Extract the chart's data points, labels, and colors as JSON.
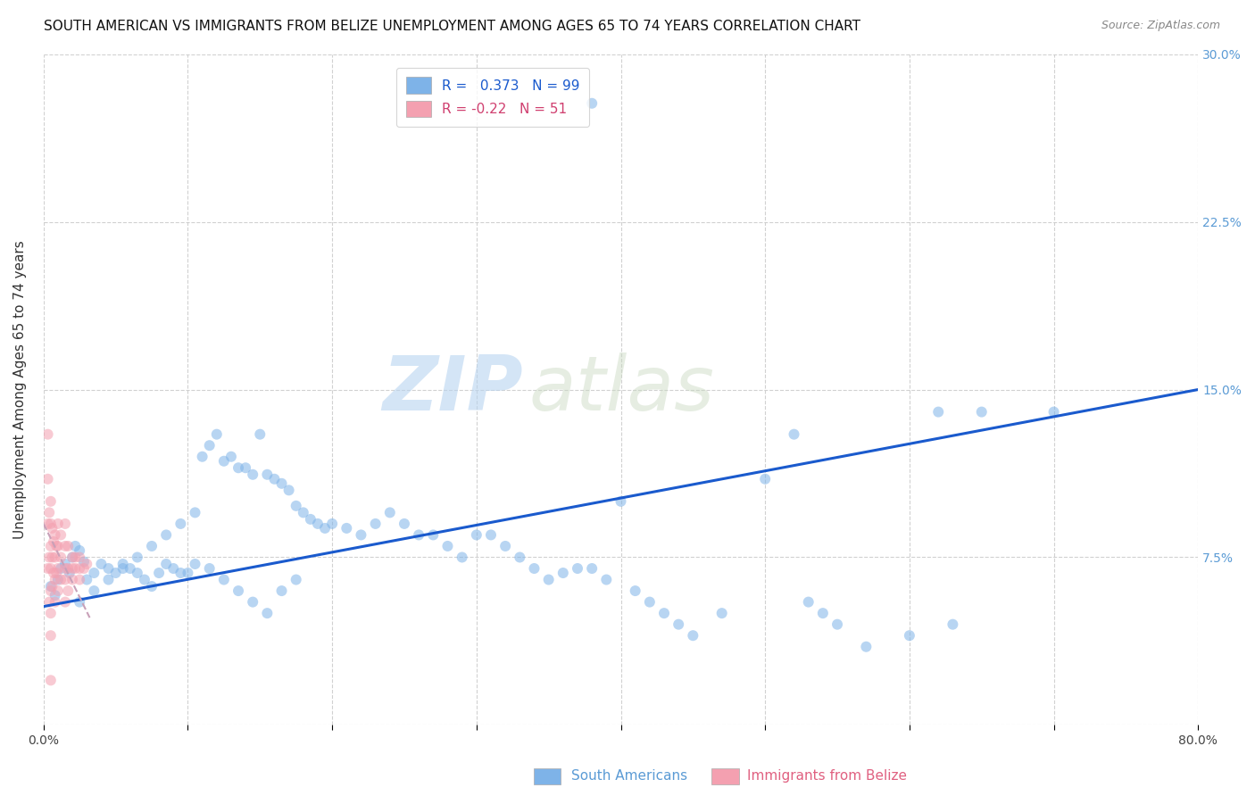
{
  "title": "SOUTH AMERICAN VS IMMIGRANTS FROM BELIZE UNEMPLOYMENT AMONG AGES 65 TO 74 YEARS CORRELATION CHART",
  "source": "Source: ZipAtlas.com",
  "ylabel": "Unemployment Among Ages 65 to 74 years",
  "xlim": [
    0,
    0.8
  ],
  "ylim": [
    0,
    0.3
  ],
  "xtick_positions": [
    0.0,
    0.1,
    0.2,
    0.3,
    0.4,
    0.5,
    0.6,
    0.7,
    0.8
  ],
  "xtick_labels": [
    "0.0%",
    "",
    "",
    "",
    "",
    "",
    "",
    "",
    "80.0%"
  ],
  "ytick_positions": [
    0.0,
    0.075,
    0.15,
    0.225,
    0.3
  ],
  "ytick_labels": [
    "",
    "7.5%",
    "15.0%",
    "22.5%",
    "30.0%"
  ],
  "blue_R": 0.373,
  "blue_N": 99,
  "pink_R": -0.22,
  "pink_N": 51,
  "blue_color": "#7eb3e8",
  "pink_color": "#f4a0b0",
  "trend_blue_color": "#1a5acd",
  "trend_pink_color": "#c8a0b8",
  "legend_label_blue": "South Americans",
  "legend_label_pink": "Immigrants from Belize",
  "watermark_zip": "ZIP",
  "watermark_atlas": "atlas",
  "blue_x": [
    0.005,
    0.008,
    0.01,
    0.012,
    0.015,
    0.018,
    0.02,
    0.022,
    0.025,
    0.028,
    0.03,
    0.035,
    0.04,
    0.045,
    0.05,
    0.055,
    0.06,
    0.065,
    0.07,
    0.075,
    0.08,
    0.085,
    0.09,
    0.095,
    0.1,
    0.105,
    0.11,
    0.115,
    0.12,
    0.125,
    0.13,
    0.135,
    0.14,
    0.145,
    0.15,
    0.155,
    0.16,
    0.165,
    0.17,
    0.175,
    0.18,
    0.185,
    0.19,
    0.195,
    0.2,
    0.21,
    0.22,
    0.23,
    0.24,
    0.25,
    0.26,
    0.27,
    0.28,
    0.29,
    0.3,
    0.31,
    0.32,
    0.33,
    0.34,
    0.35,
    0.36,
    0.37,
    0.38,
    0.39,
    0.4,
    0.41,
    0.42,
    0.43,
    0.44,
    0.45,
    0.47,
    0.5,
    0.52,
    0.53,
    0.54,
    0.55,
    0.57,
    0.6,
    0.62,
    0.63,
    0.65,
    0.7,
    0.025,
    0.035,
    0.045,
    0.055,
    0.065,
    0.075,
    0.085,
    0.095,
    0.105,
    0.115,
    0.125,
    0.135,
    0.145,
    0.155,
    0.165,
    0.175,
    0.38
  ],
  "blue_y": [
    0.062,
    0.058,
    0.065,
    0.07,
    0.072,
    0.068,
    0.075,
    0.08,
    0.078,
    0.073,
    0.065,
    0.068,
    0.072,
    0.07,
    0.068,
    0.072,
    0.07,
    0.068,
    0.065,
    0.062,
    0.068,
    0.072,
    0.07,
    0.068,
    0.068,
    0.072,
    0.12,
    0.125,
    0.13,
    0.118,
    0.12,
    0.115,
    0.115,
    0.112,
    0.13,
    0.112,
    0.11,
    0.108,
    0.105,
    0.098,
    0.095,
    0.092,
    0.09,
    0.088,
    0.09,
    0.088,
    0.085,
    0.09,
    0.095,
    0.09,
    0.085,
    0.085,
    0.08,
    0.075,
    0.085,
    0.085,
    0.08,
    0.075,
    0.07,
    0.065,
    0.068,
    0.07,
    0.07,
    0.065,
    0.1,
    0.06,
    0.055,
    0.05,
    0.045,
    0.04,
    0.05,
    0.11,
    0.13,
    0.055,
    0.05,
    0.045,
    0.035,
    0.04,
    0.14,
    0.045,
    0.14,
    0.14,
    0.055,
    0.06,
    0.065,
    0.07,
    0.075,
    0.08,
    0.085,
    0.09,
    0.095,
    0.07,
    0.065,
    0.06,
    0.055,
    0.05,
    0.06,
    0.065,
    0.278
  ],
  "pink_x": [
    0.003,
    0.003,
    0.003,
    0.003,
    0.004,
    0.004,
    0.004,
    0.005,
    0.005,
    0.005,
    0.005,
    0.005,
    0.005,
    0.005,
    0.005,
    0.006,
    0.006,
    0.006,
    0.007,
    0.007,
    0.008,
    0.008,
    0.008,
    0.008,
    0.009,
    0.009,
    0.01,
    0.01,
    0.01,
    0.01,
    0.012,
    0.012,
    0.012,
    0.015,
    0.015,
    0.015,
    0.015,
    0.015,
    0.017,
    0.017,
    0.017,
    0.02,
    0.02,
    0.02,
    0.022,
    0.022,
    0.025,
    0.025,
    0.025,
    0.028,
    0.03
  ],
  "pink_y": [
    0.13,
    0.11,
    0.09,
    0.07,
    0.095,
    0.075,
    0.055,
    0.1,
    0.09,
    0.08,
    0.07,
    0.06,
    0.05,
    0.04,
    0.02,
    0.088,
    0.075,
    0.062,
    0.082,
    0.068,
    0.085,
    0.075,
    0.065,
    0.055,
    0.08,
    0.068,
    0.09,
    0.08,
    0.07,
    0.06,
    0.085,
    0.075,
    0.065,
    0.09,
    0.08,
    0.07,
    0.065,
    0.055,
    0.08,
    0.07,
    0.06,
    0.075,
    0.07,
    0.065,
    0.075,
    0.07,
    0.075,
    0.07,
    0.065,
    0.07,
    0.072
  ],
  "blue_trend_x0": 0.0,
  "blue_trend_x1": 0.8,
  "blue_trend_y0": 0.053,
  "blue_trend_y1": 0.15,
  "pink_trend_x0": 0.0,
  "pink_trend_x1": 0.032,
  "pink_trend_y0": 0.09,
  "pink_trend_y1": 0.048,
  "title_fontsize": 11,
  "axis_label_fontsize": 11,
  "tick_fontsize": 10,
  "marker_size": 75,
  "marker_alpha": 0.55
}
